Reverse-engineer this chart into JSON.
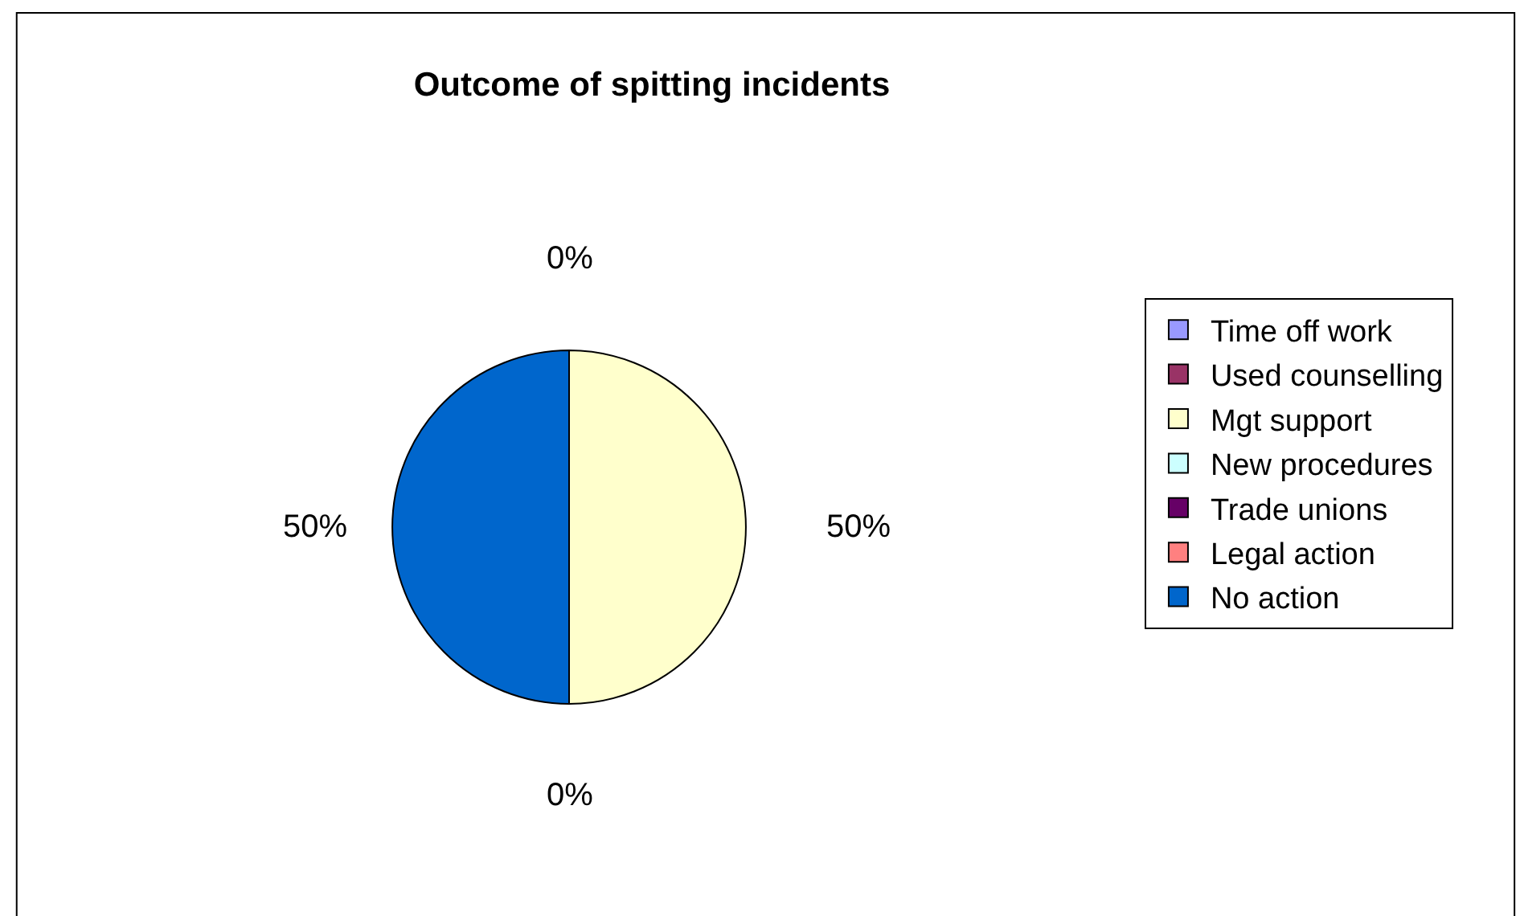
{
  "chart_data": {
    "type": "pie",
    "title": "Outcome of spitting incidents",
    "categories": [
      "Time off work",
      "Used counselling",
      "Mgt support",
      "New procedures",
      "Trade unions",
      "Legal action",
      "No action"
    ],
    "values": [
      0,
      0,
      50,
      0,
      0,
      0,
      50
    ],
    "colors": [
      "#9999ff",
      "#993366",
      "#ffffcc",
      "#ccffff",
      "#660066",
      "#ff8080",
      "#0066cc"
    ],
    "value_labels": [
      "0%",
      null,
      "50%",
      "0%",
      null,
      null,
      "50%"
    ],
    "legend": "right"
  }
}
